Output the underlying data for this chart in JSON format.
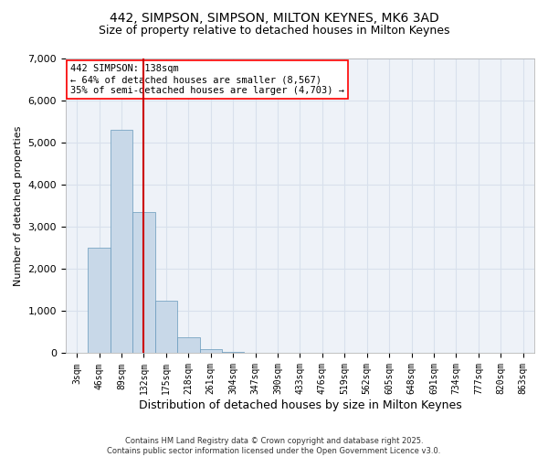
{
  "title_line1": "442, SIMPSON, SIMPSON, MILTON KEYNES, MK6 3AD",
  "title_line2": "Size of property relative to detached houses in Milton Keynes",
  "xlabel": "Distribution of detached houses by size in Milton Keynes",
  "ylabel": "Number of detached properties",
  "bar_categories": [
    "3sqm",
    "46sqm",
    "89sqm",
    "132sqm",
    "175sqm",
    "218sqm",
    "261sqm",
    "304sqm",
    "347sqm",
    "390sqm",
    "433sqm",
    "476sqm",
    "519sqm",
    "562sqm",
    "605sqm",
    "648sqm",
    "691sqm",
    "734sqm",
    "777sqm",
    "820sqm",
    "863sqm"
  ],
  "bar_values": [
    0,
    2500,
    5300,
    3350,
    1250,
    380,
    100,
    30,
    5,
    1,
    0,
    0,
    0,
    0,
    0,
    0,
    0,
    0,
    0,
    0,
    0
  ],
  "bar_color": "#c8d8e8",
  "bar_edgecolor": "#6699bb",
  "grid_color": "#d8e0ec",
  "background_color": "#eef2f8",
  "vline_x": 3.0,
  "vline_color": "#cc0000",
  "ylim": [
    0,
    7000
  ],
  "yticks": [
    0,
    1000,
    2000,
    3000,
    4000,
    5000,
    6000,
    7000
  ],
  "annotation_text": "442 SIMPSON: 138sqm\n← 64% of detached houses are smaller (8,567)\n35% of semi-detached houses are larger (4,703) →",
  "footer_line1": "Contains HM Land Registry data © Crown copyright and database right 2025.",
  "footer_line2": "Contains public sector information licensed under the Open Government Licence v3.0."
}
